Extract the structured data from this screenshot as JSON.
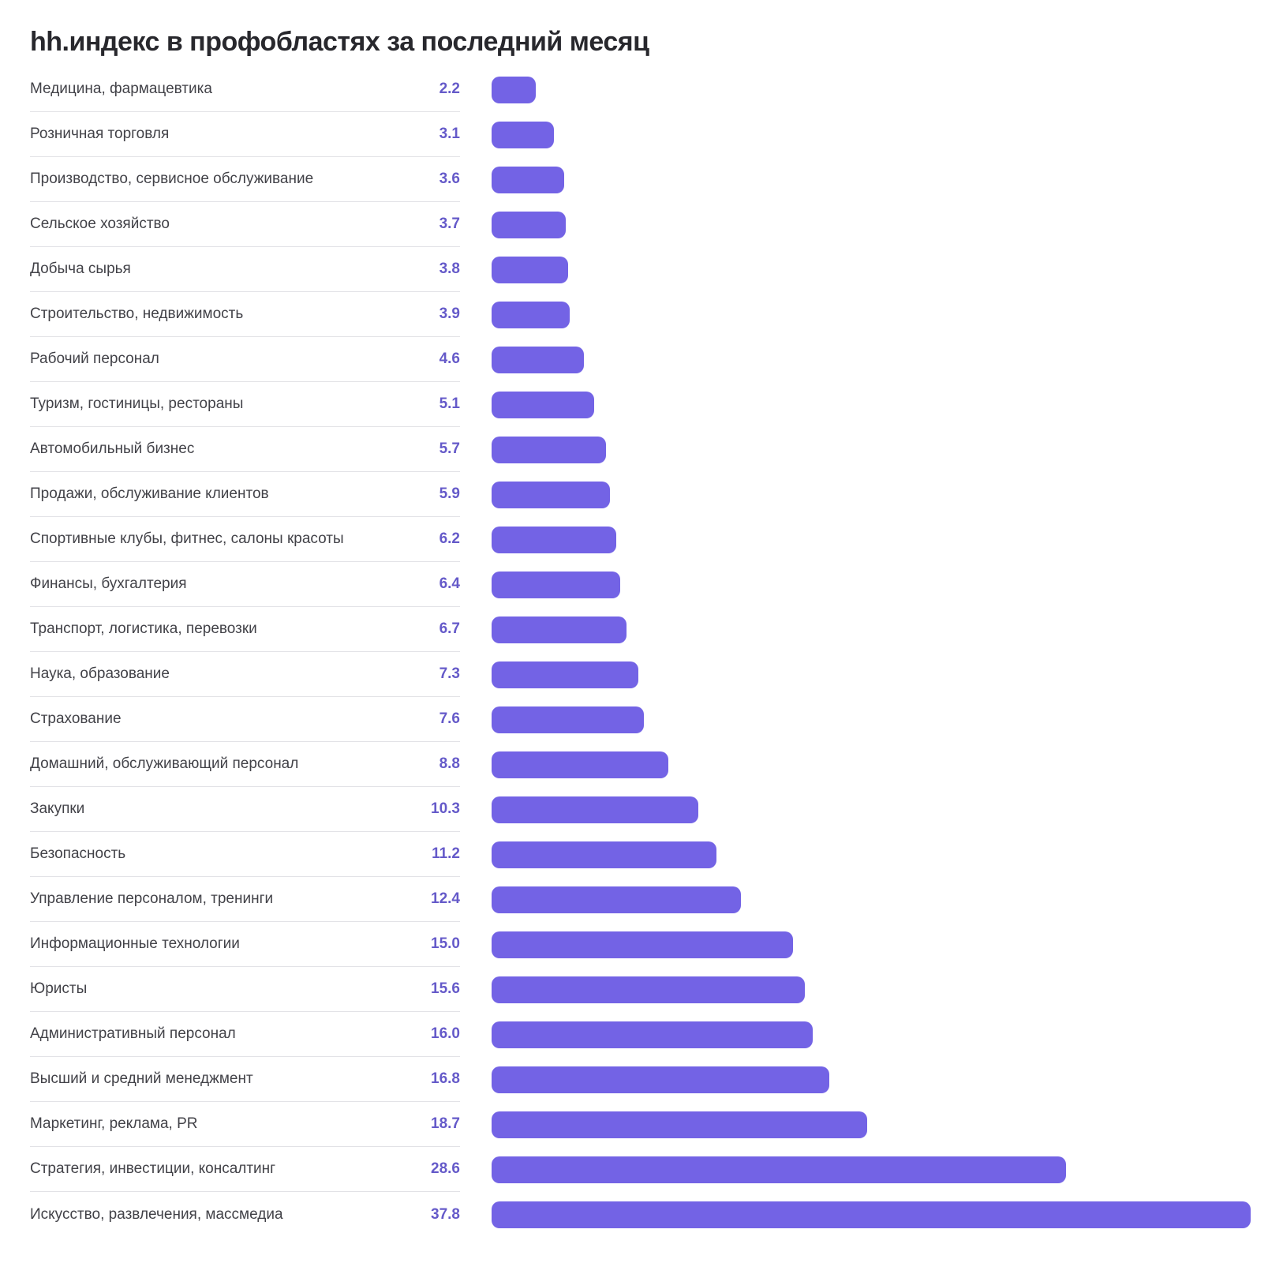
{
  "title": "hh.индекс в профобластях за последний месяц",
  "colors": {
    "bar": "#7363e5",
    "value_text": "#655ac9",
    "label_text": "#424248",
    "title_text": "#28282d",
    "divider": "#e2e2e6",
    "background": "#ffffff"
  },
  "chart_data": {
    "type": "bar",
    "orientation": "horizontal",
    "title": "hh.индекс в профобластях за последний месяц",
    "xlabel": "",
    "ylabel": "",
    "xlim": [
      0,
      37.8
    ],
    "grid": false,
    "legend": false,
    "categories": [
      "Медицина, фармацевтика",
      "Розничная торговля",
      "Производство, сервисное обслуживание",
      "Сельское хозяйство",
      "Добыча сырья",
      "Строительство, недвижимость",
      "Рабочий персонал",
      "Туризм, гостиницы, рестораны",
      "Автомобильный бизнес",
      "Продажи, обслуживание клиентов",
      "Спортивные клубы, фитнес, салоны красоты",
      "Финансы, бухгалтерия",
      "Транспорт, логистика, перевозки",
      "Наука, образование",
      "Страхование",
      "Домашний, обслуживающий персонал",
      "Закупки",
      "Безопасность",
      "Управление персоналом, тренинги",
      "Информационные технологии",
      "Юристы",
      "Административный персонал",
      "Высший и средний менеджмент",
      "Маркетинг, реклама, PR",
      "Стратегия, инвестиции, консалтинг",
      "Искусство, развлечения, массмедиа"
    ],
    "values": [
      2.2,
      3.1,
      3.6,
      3.7,
      3.8,
      3.9,
      4.6,
      5.1,
      5.7,
      5.9,
      6.2,
      6.4,
      6.7,
      7.3,
      7.6,
      8.8,
      10.3,
      11.2,
      12.4,
      15.0,
      15.6,
      16.0,
      16.8,
      18.7,
      28.6,
      37.8
    ],
    "value_labels": [
      "2.2",
      "3.1",
      "3.6",
      "3.7",
      "3.8",
      "3.9",
      "4.6",
      "5.1",
      "5.7",
      "5.9",
      "6.2",
      "6.4",
      "6.7",
      "7.3",
      "7.6",
      "8.8",
      "10.3",
      "11.2",
      "12.4",
      "15.0",
      "15.6",
      "16.0",
      "16.8",
      "18.7",
      "28.6",
      "37.8"
    ]
  }
}
